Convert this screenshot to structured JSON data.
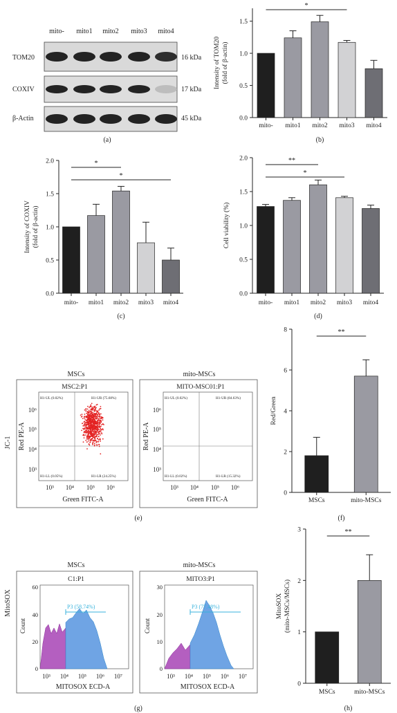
{
  "colors": {
    "black": "#1f1f1f",
    "darkgray": "#6e6e74",
    "midgray": "#9a9aa2",
    "lightgray": "#d2d2d4",
    "flowRed": "#e32222",
    "histPurple": "#b45fc0",
    "histBlue": "#6fa4e4",
    "gateCyan": "#37b2dc"
  },
  "panels": {
    "a": {
      "label": "(a)",
      "lanes": [
        "mito-",
        "mito1",
        "mito2",
        "mito3",
        "mito4"
      ],
      "rows": [
        {
          "name": "TOM20",
          "kda": "16 kDa",
          "intensity": [
            0.95,
            0.95,
            0.95,
            0.95,
            0.9
          ]
        },
        {
          "name": "COXIV",
          "kda": "17 kDa",
          "intensity": [
            0.95,
            0.95,
            0.95,
            0.95,
            0.2
          ]
        },
        {
          "name": "β-Actin",
          "kda": "45 kDa",
          "intensity": [
            0.95,
            0.95,
            0.95,
            0.95,
            0.95
          ]
        }
      ]
    },
    "e": {
      "label": "(e)",
      "side_label": "JC-1",
      "plots": [
        {
          "header": "MSCs",
          "title": "MSC2:P1",
          "xlabel": "Green FITC-A",
          "ylabel": "Red PE-A",
          "quadrants": {
            "UL": "H1-UL (0.02%)",
            "UR": "H1-UR (75.68%)",
            "LL": "H1-LL (0.05%)",
            "LR": "H1-LR (24.25%)"
          }
        },
        {
          "header": "mito-MSCs",
          "title": "MITO-MSC01:P1",
          "xlabel": "Green FITC-A",
          "ylabel": "Red PE-A",
          "quadrants": {
            "UL": "H1-UL (0.02%)",
            "UR": "H1-UR (84.63%)",
            "LL": "H1-LL (0.02%)",
            "LR": "H1-LR (15.32%)"
          }
        }
      ],
      "xticks": [
        "10³",
        "10⁴",
        "10⁵",
        "10⁶"
      ],
      "yticks": [
        "10⁶",
        "10⁵",
        "10⁴",
        "10³"
      ]
    },
    "g": {
      "label": "(g)",
      "side_label": "MitoSOX",
      "plots": [
        {
          "header": "MSCs",
          "title": "C1:P1",
          "gate": "P3 (58.74%)",
          "xlabel": "MITOSOX ECD-A",
          "ylabel": "Count",
          "yticks": [
            "60",
            "40",
            "20",
            "0"
          ]
        },
        {
          "header": "mito-MSCs",
          "title": "MITO3:P1",
          "gate": "P3 (77.48%)",
          "xlabel": "MITOSOX ECD-A",
          "ylabel": "Count",
          "yticks": [
            "30",
            "20",
            "10",
            "0"
          ]
        }
      ],
      "xticks": [
        "10³",
        "10⁴",
        "10⁵",
        "10⁶",
        "10⁷"
      ]
    }
  },
  "chart_data": [
    {
      "id": "b",
      "type": "bar",
      "panel_label": "(b)",
      "categories": [
        "mito-",
        "mito1",
        "mito2",
        "mito3",
        "mito4"
      ],
      "values": [
        1.0,
        1.24,
        1.49,
        1.17,
        0.76
      ],
      "errors": [
        0,
        0.11,
        0.1,
        0.03,
        0.13
      ],
      "colors": [
        "#1f1f1f",
        "#9a9aa2",
        "#9a9aa2",
        "#d2d2d4",
        "#6e6e74"
      ],
      "ylabel": [
        "Intensity of TOM20",
        "(fold of β-actin)"
      ],
      "ylim": [
        0,
        1.7
      ],
      "yticks": [
        "0.0",
        "0.5",
        "1.0",
        "1.5"
      ],
      "significance": [
        {
          "from": 0,
          "to": 3,
          "label": "*"
        }
      ]
    },
    {
      "id": "c",
      "type": "bar",
      "panel_label": "(c)",
      "categories": [
        "mito-",
        "mito1",
        "mito2",
        "mito3",
        "mito4"
      ],
      "values": [
        1.0,
        1.17,
        1.54,
        0.76,
        0.5
      ],
      "errors": [
        0,
        0.17,
        0.07,
        0.31,
        0.18
      ],
      "colors": [
        "#1f1f1f",
        "#9a9aa2",
        "#9a9aa2",
        "#d2d2d4",
        "#6e6e74"
      ],
      "ylabel": [
        "Intensity of COXIV",
        "(fold of β-actin)"
      ],
      "ylim": [
        0,
        2.0
      ],
      "yticks": [
        "0.0",
        "0.5",
        "1.0",
        "1.5",
        "2.0"
      ],
      "significance": [
        {
          "from": 0,
          "to": 2,
          "label": "*"
        },
        {
          "from": 0,
          "to": 4,
          "label": "*"
        }
      ]
    },
    {
      "id": "d",
      "type": "bar",
      "panel_label": "(d)",
      "categories": [
        "mito-",
        "mito1",
        "mito2",
        "mito3",
        "mito4"
      ],
      "values": [
        1.28,
        1.37,
        1.6,
        1.41,
        1.25
      ],
      "errors": [
        0.03,
        0.04,
        0.07,
        0.02,
        0.05
      ],
      "colors": [
        "#1f1f1f",
        "#9a9aa2",
        "#9a9aa2",
        "#d2d2d4",
        "#6e6e74"
      ],
      "ylabel": [
        "Cell viability (%)"
      ],
      "ylim": [
        0,
        2.0
      ],
      "yticks": [
        "0.0",
        "0.5",
        "1.0",
        "1.5",
        "2.0"
      ],
      "significance": [
        {
          "from": 0,
          "to": 2,
          "label": "**"
        },
        {
          "from": 0,
          "to": 3,
          "label": "*"
        }
      ]
    },
    {
      "id": "f",
      "type": "bar",
      "panel_label": "(f)",
      "categories": [
        "MSCs",
        "mito-MSCs"
      ],
      "values": [
        1.8,
        5.7
      ],
      "errors": [
        0.9,
        0.8
      ],
      "colors": [
        "#1f1f1f",
        "#9a9aa2"
      ],
      "ylabel": [
        "Red/Green"
      ],
      "ylim": [
        0,
        8
      ],
      "yticks": [
        "0",
        "2",
        "4",
        "6",
        "8"
      ],
      "significance": [
        {
          "from": 0,
          "to": 1,
          "label": "**"
        }
      ]
    },
    {
      "id": "h",
      "type": "bar",
      "panel_label": "(h)",
      "categories": [
        "MSCs",
        "mito-MSCs"
      ],
      "values": [
        1.0,
        2.0
      ],
      "errors": [
        0,
        0.5
      ],
      "colors": [
        "#1f1f1f",
        "#9a9aa2"
      ],
      "ylabel": [
        "MitoSOX",
        "(mito-MSCs/MSCs)"
      ],
      "ylim": [
        0,
        3
      ],
      "yticks": [
        "0",
        "1",
        "2",
        "3"
      ],
      "significance": [
        {
          "from": 0,
          "to": 1,
          "label": "**"
        }
      ]
    }
  ]
}
